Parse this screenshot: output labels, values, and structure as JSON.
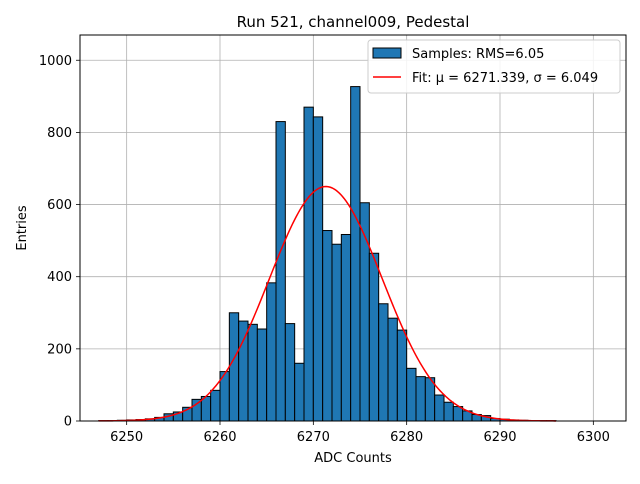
{
  "chart_data": {
    "type": "bar",
    "title": "Run 521, channel009, Pedestal",
    "xlabel": "ADC Counts",
    "ylabel": "Entries",
    "xlim": [
      6245,
      6303.5
    ],
    "ylim": [
      0,
      1070
    ],
    "grid": true,
    "legend_placement": "top-right",
    "x_ticks": [
      6250,
      6260,
      6270,
      6280,
      6290,
      6300
    ],
    "y_ticks": [
      0,
      200,
      400,
      600,
      800,
      1000
    ],
    "colors": {
      "bars": "#1f77b4",
      "bar_edge": "#000000",
      "fit": "#ff0000",
      "grid": "#b0b0b0"
    },
    "series": [
      {
        "name": "Samples: RMS=6.05",
        "type": "histogram",
        "bin_width": 1,
        "bin_left_edges": [
          6247,
          6248,
          6249,
          6250,
          6251,
          6252,
          6253,
          6254,
          6255,
          6256,
          6257,
          6258,
          6259,
          6260,
          6261,
          6262,
          6263,
          6264,
          6265,
          6266,
          6267,
          6268,
          6269,
          6270,
          6271,
          6272,
          6273,
          6274,
          6275,
          6276,
          6277,
          6278,
          6279,
          6280,
          6281,
          6282,
          6283,
          6284,
          6285,
          6286,
          6287,
          6288,
          6289,
          6290,
          6291,
          6292,
          6293,
          6294,
          6295
        ],
        "values": [
          1,
          1,
          2,
          3,
          4,
          6,
          10,
          20,
          25,
          38,
          60,
          68,
          85,
          137,
          300,
          277,
          268,
          255,
          383,
          830,
          270,
          160,
          870,
          843,
          528,
          490,
          517,
          927,
          605,
          465,
          325,
          285,
          252,
          146,
          123,
          120,
          72,
          52,
          40,
          28,
          18,
          15,
          7,
          5,
          3,
          2,
          1,
          1,
          1
        ]
      },
      {
        "name": "Fit: μ = 6271.339, σ = 6.049",
        "type": "gaussian_fit",
        "mu": 6271.339,
        "sigma": 6.049,
        "amplitude": 650,
        "x_range": [
          6247,
          6296
        ]
      }
    ]
  }
}
